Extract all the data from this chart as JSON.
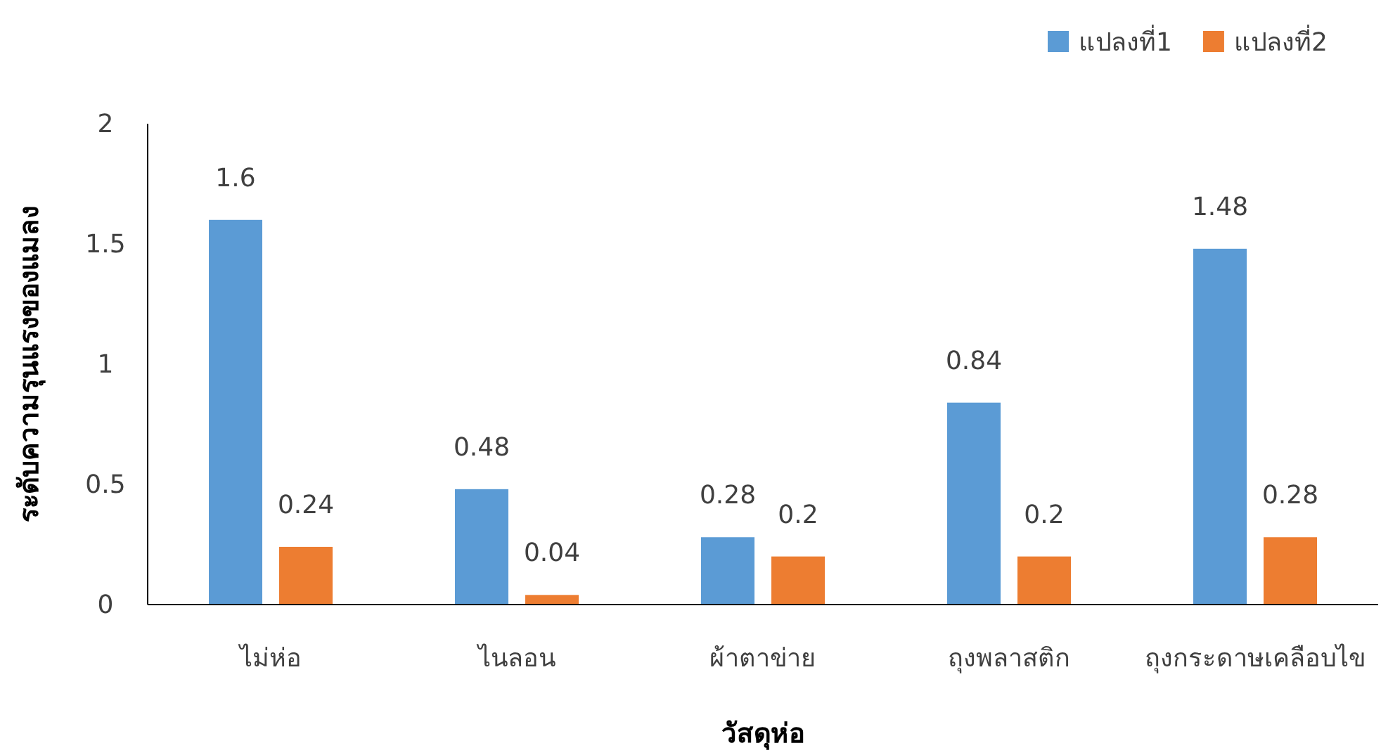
{
  "chart_data": {
    "type": "bar",
    "xlabel": "วัสดุห่อ",
    "ylabel": "ระดับความรุนแรงของแมลง",
    "categories": [
      "ไม่ห่อ",
      "ไนลอน",
      "ผ้าตาข่าย",
      "ถุงพลาสติก",
      "ถุงกระดาษเคลือบไข"
    ],
    "series": [
      {
        "name": "แปลงที่1",
        "color": "#5b9bd5",
        "values": [
          1.6,
          0.48,
          0.28,
          0.84,
          1.48
        ]
      },
      {
        "name": "แปลงที่2",
        "color": "#ed7d31",
        "values": [
          0.24,
          0.04,
          0.2,
          0.2,
          0.28
        ]
      }
    ],
    "ylim": [
      0,
      2
    ],
    "yticks": [
      0,
      0.5,
      1,
      1.5,
      2
    ],
    "data_labels": true,
    "legend": "top right",
    "grid": false
  }
}
